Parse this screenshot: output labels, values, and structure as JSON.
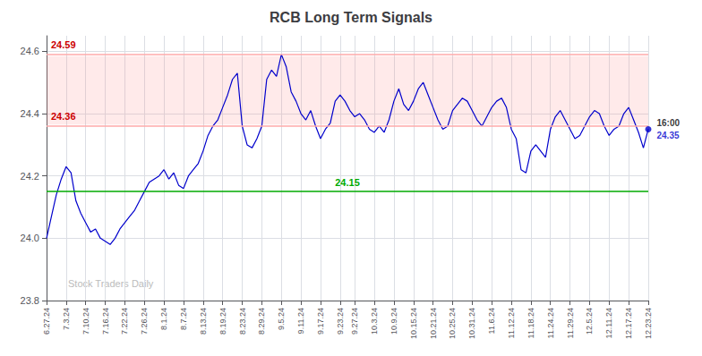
{
  "chart_data": {
    "type": "line",
    "title": "RCB Long Term Signals",
    "categories": [
      "6.27.24",
      null,
      null,
      null,
      "7.3.24",
      null,
      null,
      null,
      "7.10.24",
      null,
      null,
      null,
      "7.16.24",
      null,
      null,
      null,
      "7.22.24",
      null,
      null,
      null,
      "7.26.24",
      null,
      null,
      null,
      "8.1.24",
      null,
      null,
      null,
      "8.7.24",
      null,
      null,
      null,
      "8.13.24",
      null,
      null,
      null,
      "8.19.24",
      null,
      null,
      null,
      "8.23.24",
      null,
      null,
      null,
      "8.29.24",
      null,
      null,
      null,
      "9.5.24",
      null,
      null,
      null,
      "9.11.24",
      null,
      null,
      null,
      "9.17.24",
      null,
      null,
      null,
      "9.23.24",
      null,
      null,
      "9.27.24",
      null,
      null,
      null,
      "10.3.24",
      null,
      null,
      null,
      "10.9.24",
      null,
      null,
      null,
      "10.15.24",
      null,
      null,
      null,
      "10.21.24",
      null,
      null,
      null,
      "10.25.24",
      null,
      null,
      null,
      "10.31.24",
      null,
      null,
      null,
      "11.6.24",
      null,
      null,
      null,
      "11.12.24",
      null,
      null,
      null,
      "11.18.24",
      null,
      null,
      null,
      "11.24.24",
      null,
      null,
      null,
      "11.29.24",
      null,
      null,
      null,
      "12.5.24",
      null,
      null,
      null,
      "12.11.24",
      null,
      null,
      null,
      "12.17.24",
      null,
      null,
      null,
      "12.23.24"
    ],
    "values": [
      24.0,
      24.07,
      24.14,
      24.19,
      24.23,
      24.21,
      24.12,
      24.08,
      24.05,
      24.02,
      24.03,
      24.0,
      23.99,
      23.98,
      24.0,
      24.03,
      24.05,
      24.07,
      24.09,
      24.12,
      24.15,
      24.18,
      24.19,
      24.2,
      24.22,
      24.19,
      24.21,
      24.17,
      24.16,
      24.2,
      24.22,
      24.24,
      24.28,
      24.33,
      24.36,
      24.38,
      24.42,
      24.46,
      24.51,
      24.53,
      24.36,
      24.3,
      24.29,
      24.32,
      24.36,
      24.51,
      24.54,
      24.52,
      24.59,
      24.55,
      24.47,
      24.44,
      24.4,
      24.38,
      24.41,
      24.36,
      24.32,
      24.35,
      24.37,
      24.44,
      24.46,
      24.44,
      24.41,
      24.39,
      24.4,
      24.38,
      24.35,
      24.34,
      24.36,
      24.34,
      24.38,
      24.44,
      24.48,
      24.43,
      24.41,
      24.44,
      24.48,
      24.5,
      24.46,
      24.42,
      24.38,
      24.35,
      24.36,
      24.41,
      24.43,
      24.45,
      24.44,
      24.41,
      24.38,
      24.36,
      24.39,
      24.42,
      24.44,
      24.45,
      24.42,
      24.35,
      24.32,
      24.22,
      24.21,
      24.28,
      24.3,
      24.28,
      24.26,
      24.35,
      24.39,
      24.41,
      24.38,
      24.35,
      24.32,
      24.33,
      24.36,
      24.39,
      24.41,
      24.4,
      24.36,
      24.33,
      24.35,
      24.36,
      24.4,
      24.42,
      24.38,
      24.34,
      24.29,
      24.35
    ],
    "color": "#0000cc",
    "ylim": [
      23.8,
      24.65
    ],
    "yticks": [
      23.8,
      {
        "value": 24,
        "label": "24.0"
      },
      24.2,
      24.4,
      24.6
    ],
    "grid": true,
    "band": {
      "from": 24.365,
      "to": 24.585,
      "color": "#ff8888"
    },
    "hlines": [
      {
        "y": 24.585,
        "color": "#ffaaaa",
        "label": "24.59",
        "label_color": "#cc0000"
      },
      {
        "y": 24.365,
        "color": "#ffaaaa",
        "label": "24.36",
        "label_color": "#cc0000"
      },
      {
        "y": 24.15,
        "color": "#00aa00",
        "label": "24.15",
        "label_color": "#00aa00"
      }
    ],
    "last_point": {
      "value": 24.35,
      "time_label": "16:00",
      "value_label": "24.35"
    },
    "watermark": "Stock Traders Daily"
  }
}
